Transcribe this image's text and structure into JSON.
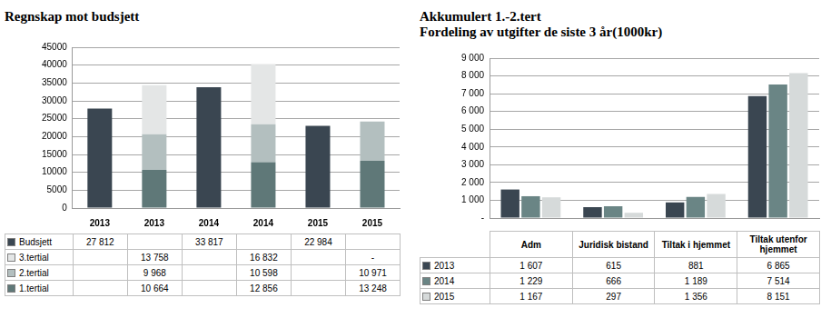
{
  "chart_data": [
    {
      "type": "bar",
      "title": "Regnskap mot budsjett",
      "categories": [
        "2013",
        "2013",
        "2014",
        "2014",
        "2015",
        "2015"
      ],
      "stacked": true,
      "grid": true,
      "ylim": [
        0,
        45000
      ],
      "yticks": [
        0,
        5000,
        10000,
        15000,
        20000,
        25000,
        30000,
        35000,
        40000,
        45000
      ],
      "series": [
        {
          "name": "Budsjett",
          "color": "#3a4651",
          "values": [
            27812,
            null,
            33817,
            null,
            22984,
            null
          ],
          "value_labels": [
            "27 812",
            null,
            "33 817",
            null,
            "22 984",
            null
          ]
        },
        {
          "name": "3.tertial",
          "color": "#e4e6e6",
          "values": [
            null,
            13758,
            null,
            16832,
            null,
            null
          ],
          "value_labels": [
            null,
            "13 758",
            null,
            "16 832",
            null,
            "-"
          ]
        },
        {
          "name": "2.tertial",
          "color": "#b3bfbf",
          "values": [
            null,
            9968,
            null,
            10598,
            null,
            10971
          ],
          "value_labels": [
            null,
            "9 968",
            null,
            "10 598",
            null,
            "10 971"
          ]
        },
        {
          "name": "1.tertial",
          "color": "#5f7878",
          "values": [
            null,
            10664,
            null,
            12856,
            null,
            13248
          ],
          "value_labels": [
            null,
            "10 664",
            null,
            "12 856",
            null,
            "13 248"
          ]
        }
      ]
    },
    {
      "type": "bar",
      "title": "Akkumulert 1.-2.tert",
      "subtitle": "Fordeling av utgifter de siste 3 år(1000kr)",
      "categories": [
        "Adm",
        "Juridisk bistand",
        "Tiltak i hjemmet",
        "Tiltak utenfor hjemmet"
      ],
      "tick_labels": "y",
      "grid": true,
      "ylim": [
        0,
        9000
      ],
      "yticks": [
        {
          "value": 0,
          "label": "-"
        },
        {
          "value": 1000,
          "label": "1 000"
        },
        {
          "value": 2000,
          "label": "2 000"
        },
        {
          "value": 3000,
          "label": "3 000"
        },
        {
          "value": 4000,
          "label": "4 000"
        },
        {
          "value": 5000,
          "label": "5 000"
        },
        {
          "value": 6000,
          "label": "6 000"
        },
        {
          "value": 7000,
          "label": "7 000"
        },
        {
          "value": 8000,
          "label": "8 000"
        },
        {
          "value": 9000,
          "label": "9 000"
        }
      ],
      "series": [
        {
          "name": "2013",
          "color": "#3a4651",
          "values": [
            1607,
            615,
            881,
            6865
          ],
          "value_labels": [
            "1 607",
            "615",
            "881",
            "6 865"
          ]
        },
        {
          "name": "2014",
          "color": "#6a8585",
          "values": [
            1229,
            666,
            1189,
            7514
          ],
          "value_labels": [
            "1 229",
            "666",
            "1 189",
            "7 514"
          ]
        },
        {
          "name": "2015",
          "color": "#d6dada",
          "values": [
            1167,
            297,
            1356,
            8151
          ],
          "value_labels": [
            "1 167",
            "297",
            "1 356",
            "8 151"
          ]
        }
      ]
    }
  ]
}
